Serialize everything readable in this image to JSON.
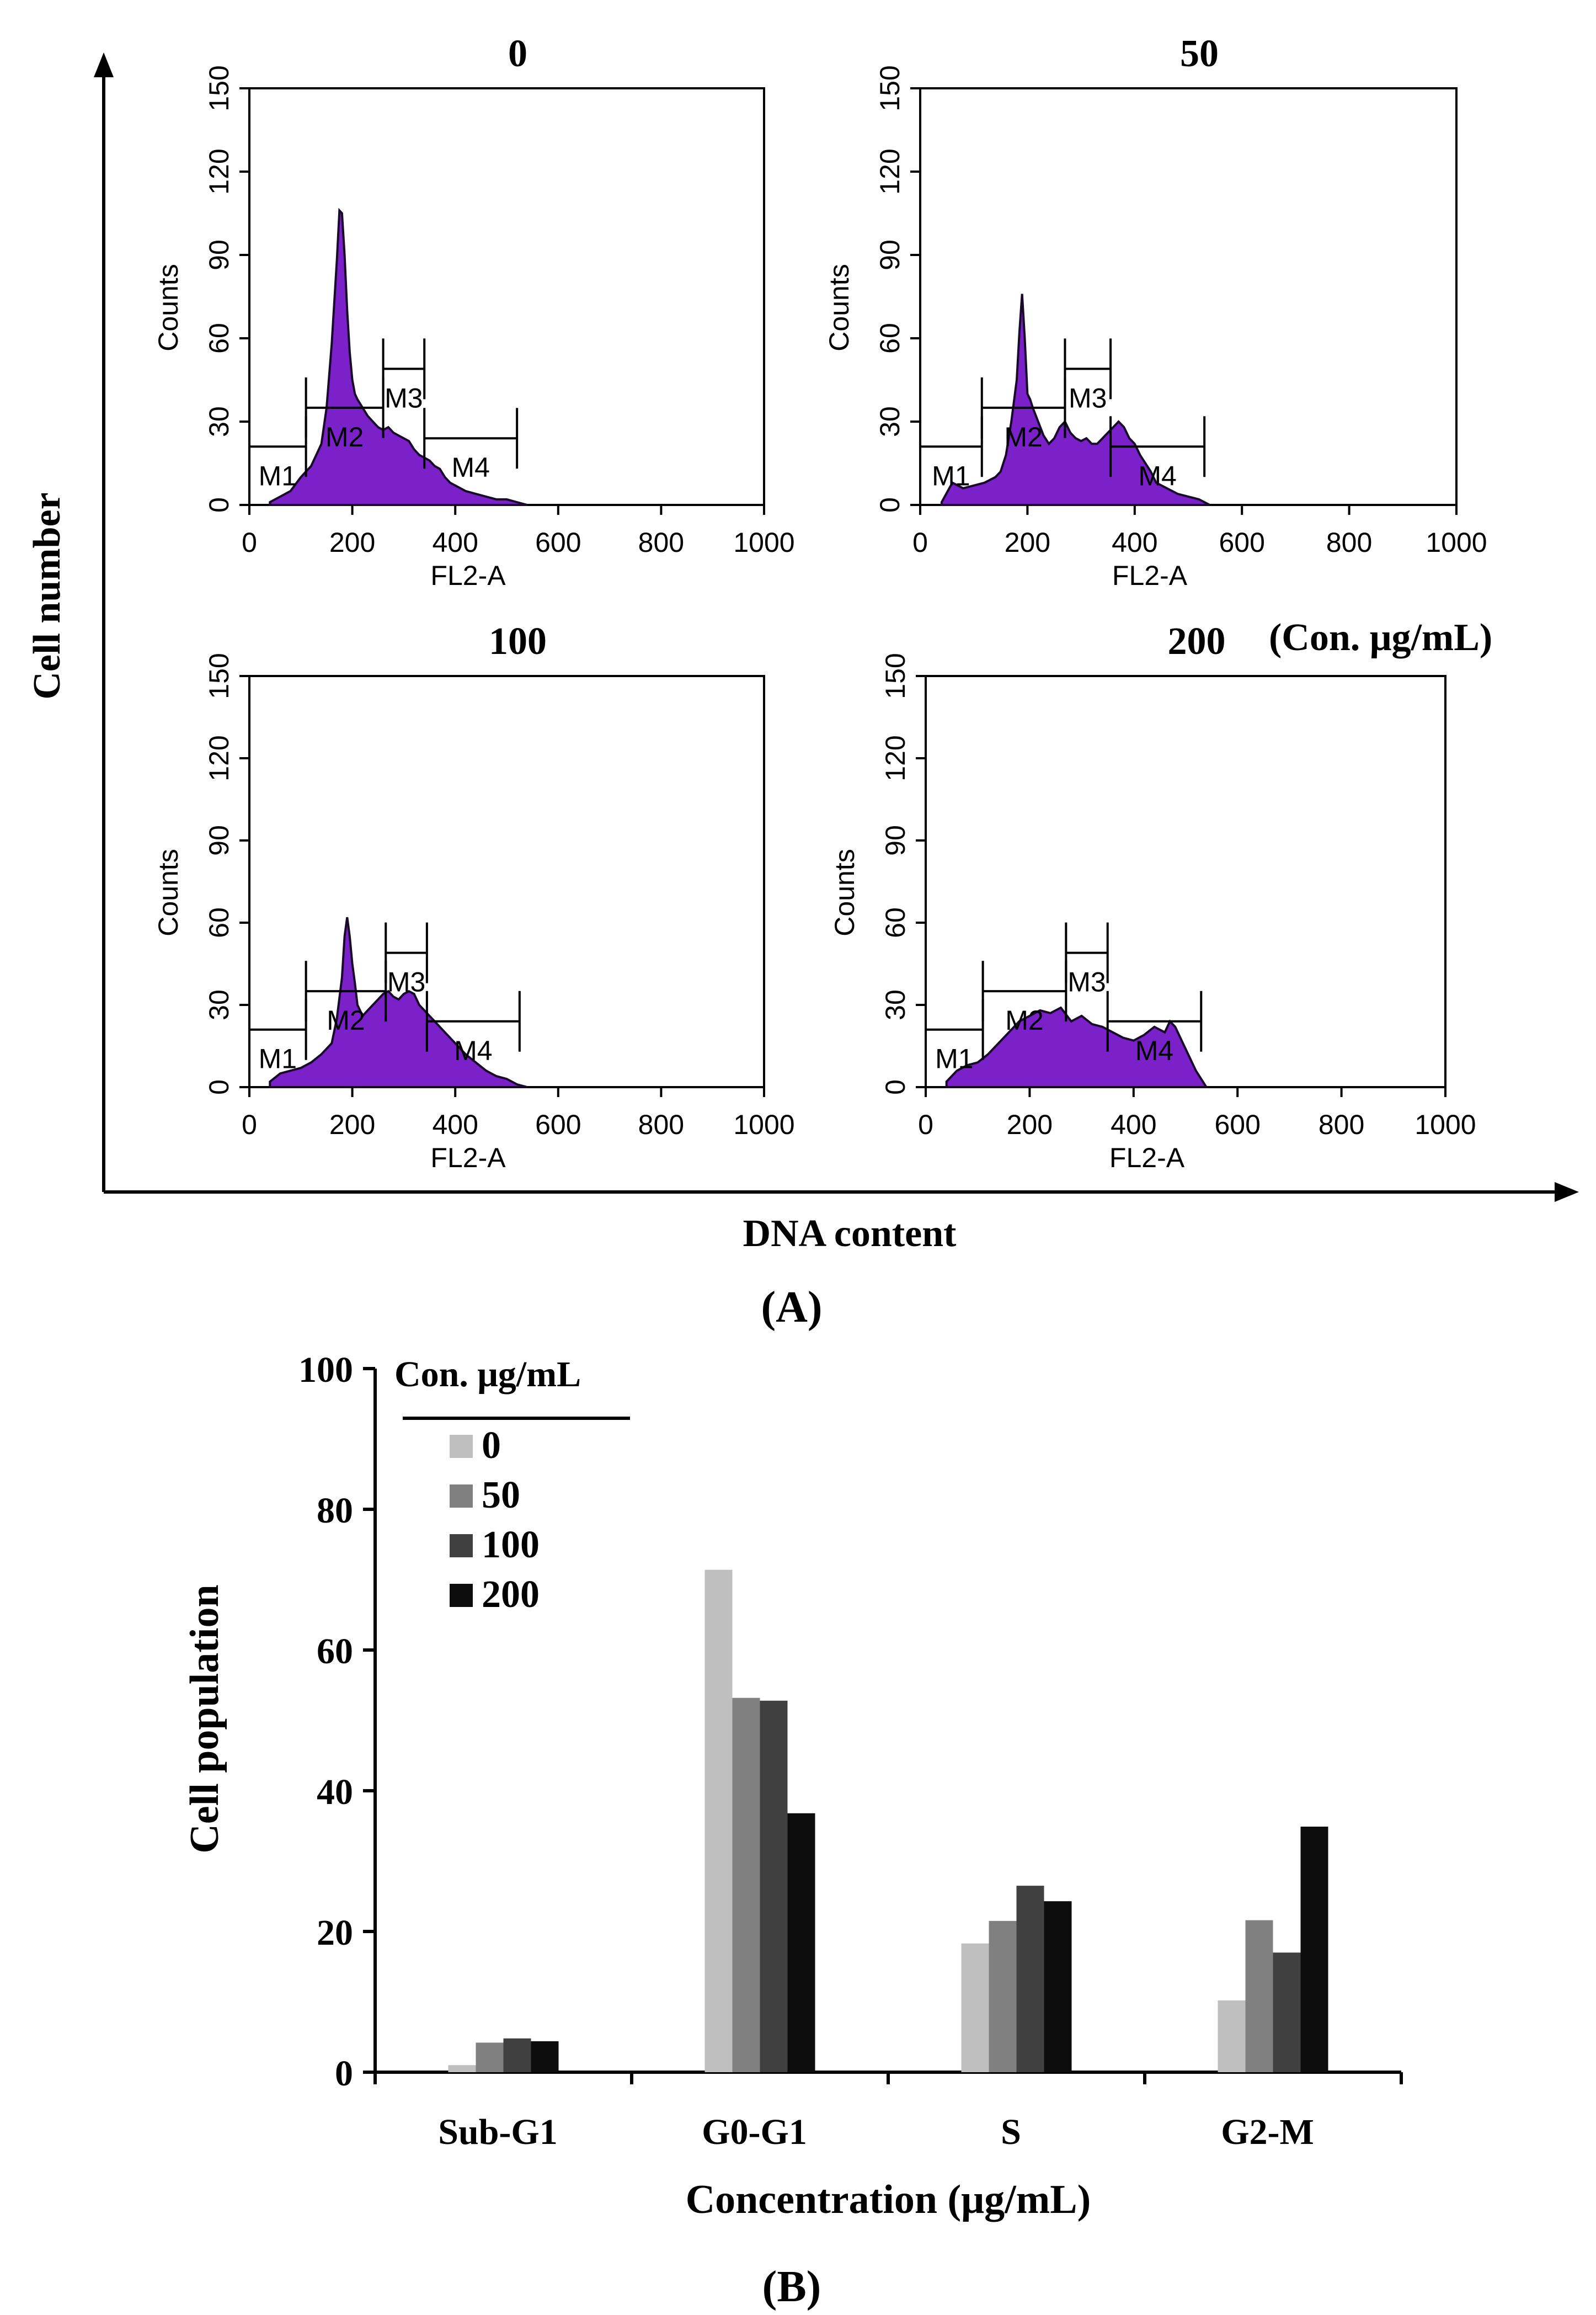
{
  "panel_a": {
    "label": "(A)",
    "axis_y": "Cell number",
    "axis_x": "DNA content",
    "conc_unit": "(Con. μg/mL)"
  },
  "panel_b": {
    "label": "(B)"
  },
  "colors": {
    "histogram_fill": "#7a21c9",
    "histogram_line": "#1a0a2a",
    "bar_0": "#bfbfbf",
    "bar_50": "#808080",
    "bar_100": "#404040",
    "bar_200": "#0d0d0d"
  },
  "chart_data": [
    {
      "type": "area",
      "title": "0",
      "xlabel": "FL2-A",
      "ylabel": "Counts",
      "xlim": [
        0,
        1000
      ],
      "ylim": [
        0,
        150
      ],
      "xticks": [
        0,
        200,
        400,
        600,
        800,
        1000
      ],
      "yticks": [
        0,
        30,
        60,
        90,
        120,
        150
      ],
      "x": [
        40,
        60,
        80,
        100,
        120,
        140,
        150,
        160,
        170,
        175,
        180,
        185,
        190,
        195,
        200,
        205,
        210,
        220,
        230,
        240,
        250,
        260,
        270,
        280,
        290,
        300,
        310,
        320,
        330,
        340,
        350,
        360,
        370,
        380,
        390,
        400,
        420,
        440,
        460,
        480,
        500,
        520,
        540
      ],
      "y": [
        1,
        3,
        5,
        10,
        14,
        22,
        35,
        58,
        88,
        106,
        105,
        90,
        70,
        55,
        45,
        40,
        38,
        35,
        32,
        30,
        28,
        27,
        28,
        26,
        25,
        24,
        23,
        20,
        18,
        17,
        16,
        14,
        13,
        10,
        8,
        7,
        5,
        4,
        3,
        2,
        2,
        1,
        0
      ],
      "markers": [
        {
          "name": "M1",
          "x0": 0,
          "x1": 110,
          "y": 21
        },
        {
          "name": "M2",
          "x0": 110,
          "x1": 260,
          "y": 35
        },
        {
          "name": "M3",
          "x0": 260,
          "x1": 340,
          "y": 49
        },
        {
          "name": "M4",
          "x0": 340,
          "x1": 520,
          "y": 24
        }
      ]
    },
    {
      "type": "area",
      "title": "50",
      "xlabel": "FL2-A",
      "ylabel": "Counts",
      "xlim": [
        0,
        1000
      ],
      "ylim": [
        0,
        150
      ],
      "xticks": [
        0,
        200,
        400,
        600,
        800,
        1000
      ],
      "yticks": [
        0,
        30,
        60,
        90,
        120,
        150
      ],
      "x": [
        40,
        60,
        80,
        100,
        120,
        140,
        150,
        160,
        170,
        180,
        185,
        190,
        195,
        200,
        205,
        210,
        220,
        230,
        240,
        250,
        260,
        270,
        280,
        290,
        300,
        310,
        320,
        330,
        340,
        350,
        360,
        370,
        380,
        390,
        400,
        410,
        420,
        430,
        440,
        460,
        480,
        500,
        520,
        540
      ],
      "y": [
        1,
        8,
        6,
        7,
        8,
        10,
        12,
        18,
        30,
        45,
        62,
        76,
        60,
        40,
        38,
        35,
        30,
        25,
        22,
        24,
        28,
        30,
        26,
        24,
        23,
        24,
        22,
        22,
        24,
        26,
        28,
        30,
        28,
        24,
        22,
        18,
        15,
        12,
        8,
        6,
        4,
        3,
        2,
        0
      ],
      "markers": [
        {
          "name": "M1",
          "x0": 0,
          "x1": 115,
          "y": 21
        },
        {
          "name": "M2",
          "x0": 115,
          "x1": 270,
          "y": 35
        },
        {
          "name": "M3",
          "x0": 270,
          "x1": 355,
          "y": 49
        },
        {
          "name": "M4",
          "x0": 355,
          "x1": 530,
          "y": 21
        }
      ]
    },
    {
      "type": "area",
      "title": "100",
      "xlabel": "FL2-A",
      "ylabel": "Counts",
      "xlim": [
        0,
        1000
      ],
      "ylim": [
        0,
        150
      ],
      "xticks": [
        0,
        200,
        400,
        600,
        800,
        1000
      ],
      "yticks": [
        0,
        30,
        60,
        90,
        120,
        150
      ],
      "x": [
        40,
        60,
        80,
        100,
        120,
        140,
        160,
        170,
        180,
        185,
        190,
        195,
        200,
        205,
        210,
        220,
        230,
        240,
        250,
        260,
        270,
        280,
        290,
        300,
        310,
        320,
        330,
        340,
        350,
        360,
        380,
        400,
        420,
        440,
        460,
        480,
        500,
        520,
        540
      ],
      "y": [
        2,
        5,
        6,
        7,
        9,
        12,
        16,
        25,
        40,
        55,
        62,
        55,
        45,
        38,
        30,
        26,
        28,
        30,
        32,
        34,
        35,
        33,
        32,
        34,
        35,
        34,
        30,
        28,
        26,
        24,
        20,
        16,
        12,
        9,
        6,
        4,
        3,
        1,
        0
      ],
      "markers": [
        {
          "name": "M1",
          "x0": 0,
          "x1": 110,
          "y": 21
        },
        {
          "name": "M2",
          "x0": 110,
          "x1": 265,
          "y": 35
        },
        {
          "name": "M3",
          "x0": 265,
          "x1": 345,
          "y": 49
        },
        {
          "name": "M4",
          "x0": 345,
          "x1": 525,
          "y": 24
        }
      ]
    },
    {
      "type": "area",
      "title": "200",
      "xlabel": "FL2-A",
      "ylabel": "Counts",
      "xlim": [
        0,
        1000
      ],
      "ylim": [
        0,
        150
      ],
      "xticks": [
        0,
        200,
        400,
        600,
        800,
        1000
      ],
      "yticks": [
        0,
        30,
        60,
        90,
        120,
        150
      ],
      "x": [
        40,
        60,
        80,
        100,
        120,
        140,
        160,
        180,
        200,
        220,
        240,
        260,
        280,
        300,
        320,
        340,
        360,
        380,
        400,
        420,
        440,
        460,
        470,
        480,
        490,
        500,
        510,
        520,
        530,
        540
      ],
      "y": [
        2,
        6,
        8,
        9,
        12,
        16,
        20,
        24,
        26,
        28,
        27,
        29,
        24,
        26,
        23,
        22,
        20,
        18,
        17,
        19,
        22,
        20,
        24,
        22,
        18,
        14,
        10,
        6,
        3,
        0
      ],
      "markers": [
        {
          "name": "M1",
          "x0": 0,
          "x1": 110,
          "y": 21
        },
        {
          "name": "M2",
          "x0": 110,
          "x1": 270,
          "y": 35
        },
        {
          "name": "M3",
          "x0": 270,
          "x1": 350,
          "y": 49
        },
        {
          "name": "M4",
          "x0": 350,
          "x1": 530,
          "y": 24
        }
      ]
    },
    {
      "type": "bar",
      "title": "",
      "xlabel": "Concentration (μg/mL)",
      "ylabel": "Cell population",
      "ylim": [
        0,
        100
      ],
      "yticks": [
        0,
        20,
        40,
        60,
        80,
        100
      ],
      "categories": [
        "Sub-G1",
        "G0-G1",
        "S",
        "G2-M"
      ],
      "legend_title": "Con. μg/mL",
      "legend_position": "top-left",
      "series": [
        {
          "name": "0",
          "values": [
            1.0,
            71.4,
            18.3,
            10.2
          ]
        },
        {
          "name": "50",
          "values": [
            4.2,
            53.2,
            21.5,
            21.6
          ]
        },
        {
          "name": "100",
          "values": [
            4.8,
            52.8,
            26.5,
            17.0
          ]
        },
        {
          "name": "200",
          "values": [
            4.4,
            36.8,
            24.3,
            34.9
          ]
        }
      ]
    }
  ]
}
